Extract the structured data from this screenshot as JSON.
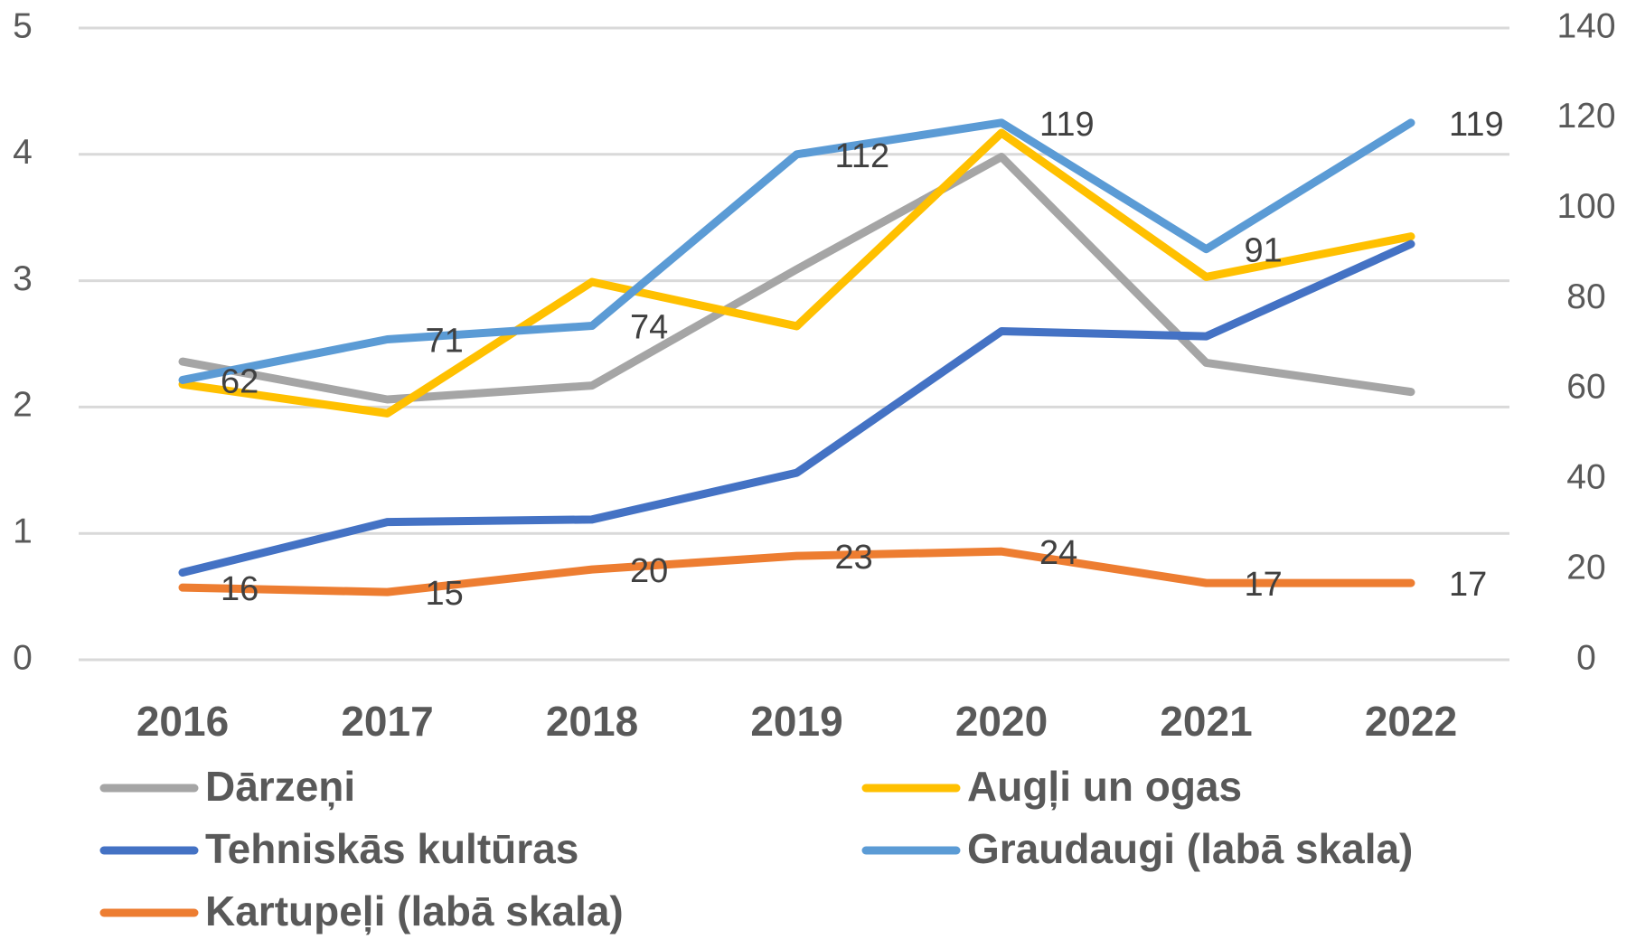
{
  "chart_data": {
    "type": "line",
    "categories": [
      "2016",
      "2017",
      "2018",
      "2019",
      "2020",
      "2021",
      "2022"
    ],
    "ylim": [
      0,
      5
    ],
    "yticks": [
      0,
      1,
      2,
      3,
      4,
      5
    ],
    "y2lim": [
      0,
      140
    ],
    "y2ticks": [
      0,
      20,
      40,
      60,
      80,
      100,
      120,
      140
    ],
    "grid": true,
    "legend": "bottom",
    "series": [
      {
        "name": "Dārzeņi",
        "color": "#a5a5a5",
        "values": [
          2.36,
          2.06,
          2.17,
          3.09,
          3.98,
          2.35,
          2.12
        ]
      },
      {
        "name": "Augļi un ogas",
        "color": "#ffc000",
        "values": [
          2.18,
          1.95,
          2.99,
          2.64,
          4.17,
          3.03,
          3.35
        ]
      },
      {
        "name": "Tehniskās kultūras",
        "color": "#4472c4",
        "values": [
          0.69,
          1.09,
          1.11,
          1.48,
          2.6,
          2.56,
          3.29
        ]
      },
      {
        "name": "Graudaugi (labā skala)",
        "color": "#5b9bd5",
        "axis": "y2",
        "values": [
          62,
          71,
          74,
          112,
          119,
          91,
          119
        ],
        "data_labels": true
      },
      {
        "name": "Kartupeļi (labā skala)",
        "color": "#ed7d31",
        "axis": "y2",
        "values": [
          16,
          15,
          20,
          23,
          24,
          17,
          17
        ],
        "data_labels": true
      }
    ]
  }
}
